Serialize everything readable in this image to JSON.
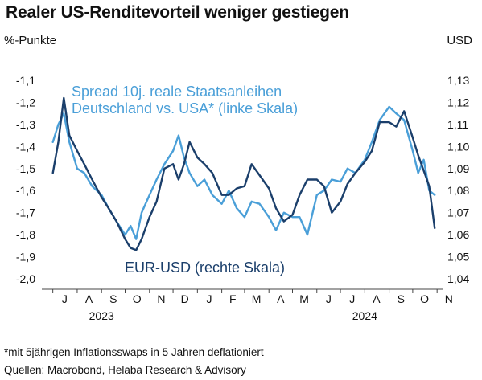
{
  "title": "Realer US-Renditevorteil weniger gestiegen",
  "footnote": "*mit 5jährigen Inflationsswaps in 5 Jahren deflationiert",
  "source": "Quellen: Macrobond, Helaba Research & Advisory",
  "colors": {
    "spread": "#4a9fd8",
    "eurusd": "#1b3f6b",
    "text": "#111111"
  },
  "chart_data": {
    "type": "line",
    "ylabel_left": "%-Punkte",
    "ylabel_right": "USD",
    "ylim_left": [
      -2.0,
      -1.1
    ],
    "ylim_right": [
      1.04,
      1.13
    ],
    "yticks_left": [
      "-1,1",
      "-1,2",
      "-1,3",
      "-1,4",
      "-1,5",
      "-1,6",
      "-1,7",
      "-1,8",
      "-1,9",
      "-2,0"
    ],
    "yticks_right": [
      "1,13",
      "1,12",
      "1,11",
      "1,10",
      "1,09",
      "1,08",
      "1,07",
      "1,06",
      "1,05",
      "1,04"
    ],
    "xticks": [
      "J",
      "A",
      "S",
      "O",
      "N",
      "D",
      "J",
      "F",
      "M",
      "A",
      "M",
      "J",
      "J",
      "A",
      "S",
      "O",
      "N"
    ],
    "year_labels": [
      "2023",
      "2024"
    ],
    "grid": false,
    "series": [
      {
        "name": "Spread 10j. reale Staatsanleihen Deutschland vs. USA* (linke Skala)",
        "axis": "left",
        "x": [
          "2023-07-01",
          "2023-07-08",
          "2023-07-15",
          "2023-07-22",
          "2023-08-01",
          "2023-08-10",
          "2023-08-20",
          "2023-09-01",
          "2023-09-10",
          "2023-09-20",
          "2023-10-01",
          "2023-10-08",
          "2023-10-15",
          "2023-10-22",
          "2023-11-01",
          "2023-11-10",
          "2023-11-20",
          "2023-12-01",
          "2023-12-08",
          "2023-12-15",
          "2023-12-22",
          "2024-01-01",
          "2024-01-10",
          "2024-01-20",
          "2024-02-01",
          "2024-02-10",
          "2024-02-20",
          "2024-03-01",
          "2024-03-10",
          "2024-03-20",
          "2024-04-01",
          "2024-04-10",
          "2024-04-20",
          "2024-05-01",
          "2024-05-10",
          "2024-05-20",
          "2024-06-01",
          "2024-06-10",
          "2024-06-20",
          "2024-07-01",
          "2024-07-10",
          "2024-07-20",
          "2024-08-01",
          "2024-08-10",
          "2024-08-20",
          "2024-09-01",
          "2024-09-10",
          "2024-09-20",
          "2024-10-01",
          "2024-10-08",
          "2024-10-15",
          "2024-10-22",
          "2024-10-29"
        ],
        "values": [
          -1.38,
          -1.3,
          -1.25,
          -1.38,
          -1.5,
          -1.52,
          -1.58,
          -1.62,
          -1.68,
          -1.74,
          -1.8,
          -1.76,
          -1.82,
          -1.7,
          -1.62,
          -1.55,
          -1.48,
          -1.42,
          -1.35,
          -1.45,
          -1.52,
          -1.58,
          -1.55,
          -1.62,
          -1.66,
          -1.6,
          -1.68,
          -1.72,
          -1.65,
          -1.66,
          -1.72,
          -1.78,
          -1.7,
          -1.72,
          -1.72,
          -1.8,
          -1.62,
          -1.6,
          -1.55,
          -1.56,
          -1.5,
          -1.52,
          -1.46,
          -1.38,
          -1.28,
          -1.22,
          -1.25,
          -1.28,
          -1.42,
          -1.52,
          -1.46,
          -1.6,
          -1.62
        ]
      },
      {
        "name": "EUR-USD (rechte Skala)",
        "axis": "right",
        "x": [
          "2023-07-01",
          "2023-07-08",
          "2023-07-15",
          "2023-07-22",
          "2023-08-01",
          "2023-08-10",
          "2023-08-20",
          "2023-09-01",
          "2023-09-10",
          "2023-09-20",
          "2023-10-01",
          "2023-10-08",
          "2023-10-15",
          "2023-10-22",
          "2023-11-01",
          "2023-11-10",
          "2023-11-20",
          "2023-12-01",
          "2023-12-08",
          "2023-12-15",
          "2023-12-22",
          "2024-01-01",
          "2024-01-10",
          "2024-01-20",
          "2024-02-01",
          "2024-02-10",
          "2024-02-20",
          "2024-03-01",
          "2024-03-10",
          "2024-03-20",
          "2024-04-01",
          "2024-04-10",
          "2024-04-20",
          "2024-05-01",
          "2024-05-10",
          "2024-05-20",
          "2024-06-01",
          "2024-06-10",
          "2024-06-20",
          "2024-07-01",
          "2024-07-10",
          "2024-07-20",
          "2024-08-01",
          "2024-08-10",
          "2024-08-20",
          "2024-09-01",
          "2024-09-10",
          "2024-09-20",
          "2024-10-01",
          "2024-10-08",
          "2024-10-15",
          "2024-10-22",
          "2024-10-29"
        ],
        "values": [
          1.088,
          1.102,
          1.122,
          1.105,
          1.098,
          1.092,
          1.085,
          1.077,
          1.072,
          1.066,
          1.058,
          1.054,
          1.053,
          1.058,
          1.068,
          1.075,
          1.09,
          1.092,
          1.085,
          1.092,
          1.102,
          1.095,
          1.092,
          1.088,
          1.078,
          1.078,
          1.081,
          1.082,
          1.092,
          1.087,
          1.081,
          1.072,
          1.066,
          1.069,
          1.078,
          1.085,
          1.085,
          1.082,
          1.07,
          1.075,
          1.083,
          1.088,
          1.093,
          1.098,
          1.111,
          1.111,
          1.109,
          1.116,
          1.104,
          1.096,
          1.089,
          1.082,
          1.063
        ]
      }
    ]
  }
}
